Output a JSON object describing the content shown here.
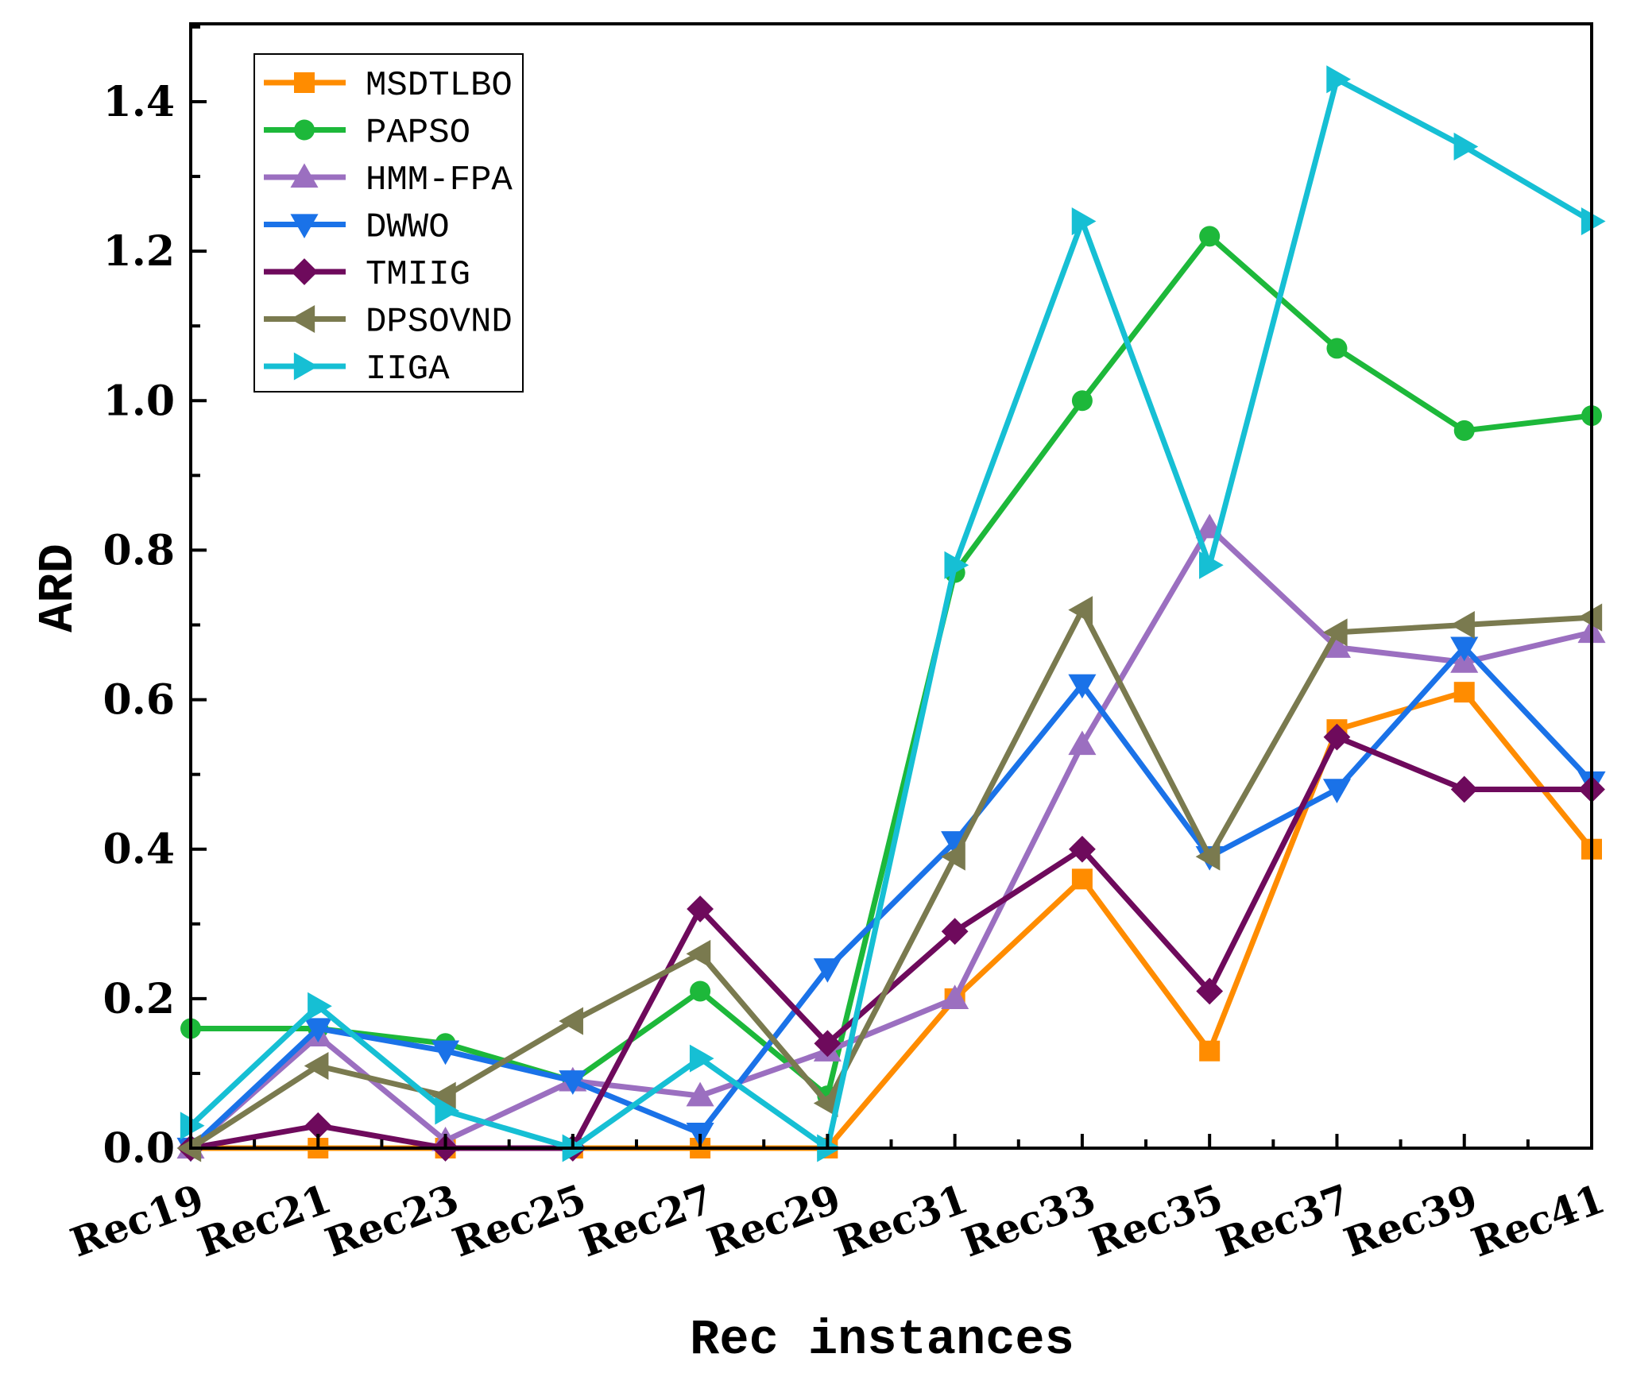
{
  "chart_data": {
    "type": "line",
    "title": "",
    "xlabel": "Rec instances",
    "ylabel": "ARD",
    "categories": [
      "Rec19",
      "Rec21",
      "Rec23",
      "Rec25",
      "Rec27",
      "Rec29",
      "Rec31",
      "Rec33",
      "Rec35",
      "Rec37",
      "Rec39",
      "Rec41"
    ],
    "ylim": [
      0,
      1.5
    ],
    "yticks": [
      0.0,
      0.2,
      0.4,
      0.6,
      0.8,
      1.0,
      1.2,
      1.4
    ],
    "ytick_labels": [
      "0.0",
      "0.2",
      "0.4",
      "0.6",
      "0.8",
      "1.0",
      "1.2",
      "1.4"
    ],
    "legend_position": "top-left",
    "series": [
      {
        "name": "MSDTLBO",
        "color": "#ff8c00",
        "marker": "square",
        "values": [
          0.0,
          0.0,
          0.0,
          0.0,
          0.0,
          0.0,
          0.2,
          0.36,
          0.13,
          0.56,
          0.61,
          0.4
        ]
      },
      {
        "name": "PAPSO",
        "color": "#1db83a",
        "marker": "circle",
        "values": [
          0.16,
          0.16,
          0.14,
          0.09,
          0.21,
          0.07,
          0.77,
          1.0,
          1.22,
          1.07,
          0.96,
          0.98
        ]
      },
      {
        "name": "HMM-FPA",
        "color": "#9b6fc0",
        "marker": "triangle-up",
        "values": [
          0.0,
          0.15,
          0.01,
          0.09,
          0.07,
          0.13,
          0.2,
          0.54,
          0.83,
          0.67,
          0.65,
          0.69
        ]
      },
      {
        "name": "DWWO",
        "color": "#1a72e8",
        "marker": "triangle-down",
        "values": [
          0.0,
          0.16,
          0.13,
          0.09,
          0.02,
          0.24,
          0.41,
          0.62,
          0.39,
          0.48,
          0.67,
          0.49
        ]
      },
      {
        "name": "TMIIG",
        "color": "#6e0a5c",
        "marker": "diamond",
        "values": [
          0.0,
          0.03,
          0.0,
          0.0,
          0.32,
          0.14,
          0.29,
          0.4,
          0.21,
          0.55,
          0.48,
          0.48
        ]
      },
      {
        "name": "DPSOVND",
        "color": "#7a7a4f",
        "marker": "triangle-left",
        "values": [
          0.0,
          0.11,
          0.07,
          0.17,
          0.26,
          0.06,
          0.39,
          0.72,
          0.39,
          0.69,
          0.7,
          0.71
        ]
      },
      {
        "name": "IIGA",
        "color": "#16bfd4",
        "marker": "triangle-right",
        "values": [
          0.03,
          0.19,
          0.05,
          0.0,
          0.12,
          0.0,
          0.78,
          1.24,
          0.78,
          1.43,
          1.34,
          1.24
        ]
      }
    ]
  }
}
